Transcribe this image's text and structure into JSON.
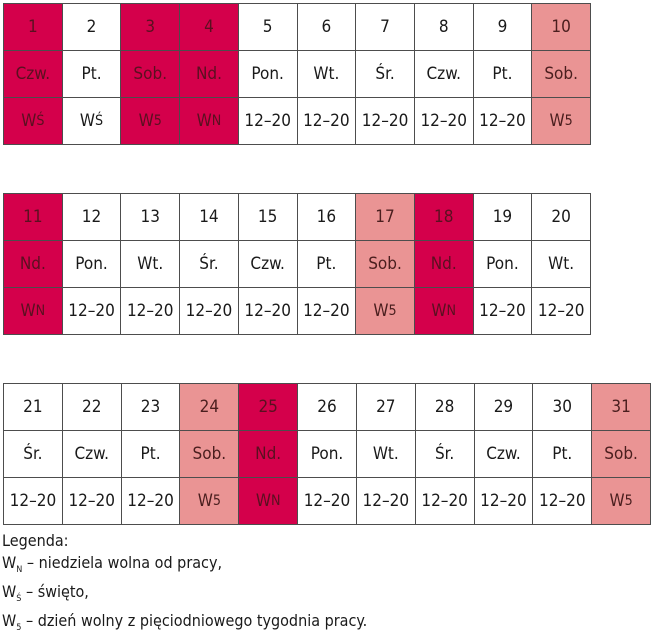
{
  "weeks": [
    {
      "days": [
        {
          "date": "1",
          "weekday": "Czw.",
          "w": "W",
          "sub": "Ś",
          "color": "red"
        },
        {
          "date": "2",
          "weekday": "Pt.",
          "w": "W",
          "sub": "Ś",
          "color": "white"
        },
        {
          "date": "3",
          "weekday": "Sob.",
          "w": "W",
          "sub": "5",
          "color": "red"
        },
        {
          "date": "4",
          "weekday": "Nd.",
          "w": "W",
          "sub": "N",
          "color": "red"
        },
        {
          "date": "5",
          "weekday": "Pon.",
          "hours": "12–20",
          "color": "white"
        },
        {
          "date": "6",
          "weekday": "Wt.",
          "hours": "12–20",
          "color": "white"
        },
        {
          "date": "7",
          "weekday": "Śr.",
          "hours": "12–20",
          "color": "white"
        },
        {
          "date": "8",
          "weekday": "Czw.",
          "hours": "12–20",
          "color": "white"
        },
        {
          "date": "9",
          "weekday": "Pt.",
          "hours": "12–20",
          "color": "white"
        },
        {
          "date": "10",
          "weekday": "Sob.",
          "w": "W",
          "sub": "5",
          "color": "pink"
        }
      ]
    },
    {
      "days": [
        {
          "date": "11",
          "weekday": "Nd.",
          "w": "W",
          "sub": "N",
          "color": "red"
        },
        {
          "date": "12",
          "weekday": "Pon.",
          "hours": "12–20",
          "color": "white"
        },
        {
          "date": "13",
          "weekday": "Wt.",
          "hours": "12–20",
          "color": "white"
        },
        {
          "date": "14",
          "weekday": "Śr.",
          "hours": "12–20",
          "color": "white"
        },
        {
          "date": "15",
          "weekday": "Czw.",
          "hours": "12–20",
          "color": "white"
        },
        {
          "date": "16",
          "weekday": "Pt.",
          "hours": "12–20",
          "color": "white"
        },
        {
          "date": "17",
          "weekday": "Sob.",
          "w": "W",
          "sub": "5",
          "color": "pink"
        },
        {
          "date": "18",
          "weekday": "Nd.",
          "w": "W",
          "sub": "N",
          "color": "red"
        },
        {
          "date": "19",
          "weekday": "Pon.",
          "hours": "12–20",
          "color": "white"
        },
        {
          "date": "20",
          "weekday": "Wt.",
          "hours": "12–20",
          "color": "white"
        }
      ]
    },
    {
      "days": [
        {
          "date": "21",
          "weekday": "Śr.",
          "hours": "12–20",
          "color": "white"
        },
        {
          "date": "22",
          "weekday": "Czw.",
          "hours": "12–20",
          "color": "white"
        },
        {
          "date": "23",
          "weekday": "Pt.",
          "hours": "12–20",
          "color": "white"
        },
        {
          "date": "24",
          "weekday": "Sob.",
          "w": "W",
          "sub": "5",
          "color": "pink"
        },
        {
          "date": "25",
          "weekday": "Nd.",
          "w": "W",
          "sub": "N",
          "color": "red"
        },
        {
          "date": "26",
          "weekday": "Pon.",
          "hours": "12–20",
          "color": "white"
        },
        {
          "date": "27",
          "weekday": "Wt.",
          "hours": "12–20",
          "color": "white"
        },
        {
          "date": "28",
          "weekday": "Śr.",
          "hours": "12–20",
          "color": "white"
        },
        {
          "date": "29",
          "weekday": "Czw.",
          "hours": "12–20",
          "color": "white"
        },
        {
          "date": "30",
          "weekday": "Pt.",
          "hours": "12–20",
          "color": "white"
        },
        {
          "date": "31",
          "weekday": "Sob.",
          "w": "W",
          "sub": "5",
          "color": "pink"
        }
      ]
    }
  ],
  "colors": {
    "red": "#d4004b",
    "pink": "#ea9494",
    "white": "#ffffff"
  },
  "legend": {
    "title": "Legenda:",
    "items": [
      {
        "w": "W",
        "sub": "N",
        "text": " – niedziela wolna od pracy,"
      },
      {
        "w": "W",
        "sub": "Ś",
        "text": " – święto,"
      },
      {
        "w": "W",
        "sub": "5",
        "text": " – dzień wolny z pięciodniowego tygodnia pracy."
      }
    ]
  }
}
